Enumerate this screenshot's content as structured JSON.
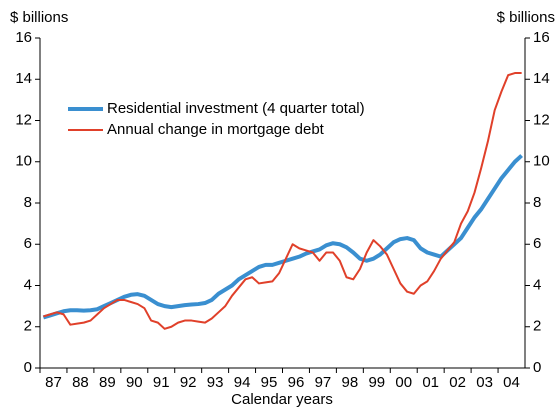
{
  "chart_data": {
    "type": "line",
    "y_label": "$ billions",
    "y2_label": "$ billions",
    "x_label": "Calendar years",
    "categories": [
      null,
      "87",
      null,
      null,
      null,
      "88",
      null,
      null,
      null,
      "89",
      null,
      null,
      null,
      "90",
      null,
      null,
      null,
      "91",
      null,
      null,
      null,
      "92",
      null,
      null,
      null,
      "93",
      null,
      null,
      null,
      "94",
      null,
      null,
      null,
      "95",
      null,
      null,
      null,
      "96",
      null,
      null,
      null,
      "97",
      null,
      null,
      null,
      "98",
      null,
      null,
      null,
      "99",
      null,
      null,
      null,
      "00",
      null,
      null,
      null,
      "01",
      null,
      null,
      null,
      "02",
      null,
      null,
      null,
      "03",
      null,
      null,
      null,
      "04",
      null,
      null
    ],
    "series": [
      {
        "name": "Residential investment (4 quarter total)",
        "color": "#3a8fd0",
        "values": [
          2.45,
          2.55,
          2.65,
          2.75,
          2.8,
          2.8,
          2.78,
          2.8,
          2.85,
          3.0,
          3.15,
          3.3,
          3.45,
          3.55,
          3.58,
          3.5,
          3.3,
          3.1,
          3.0,
          2.95,
          3.0,
          3.05,
          3.08,
          3.1,
          3.15,
          3.3,
          3.6,
          3.8,
          4.0,
          4.3,
          4.5,
          4.7,
          4.9,
          5.0,
          5.0,
          5.1,
          5.2,
          5.3,
          5.4,
          5.55,
          5.65,
          5.75,
          5.95,
          6.05,
          6.0,
          5.85,
          5.6,
          5.3,
          5.2,
          5.3,
          5.5,
          5.8,
          6.1,
          6.25,
          6.3,
          6.2,
          5.8,
          5.6,
          5.5,
          5.4,
          5.7,
          6.0,
          6.3,
          6.8,
          7.3,
          7.7,
          8.2,
          8.7,
          9.2,
          9.6,
          10.0,
          10.3
        ]
      },
      {
        "name": "Annual change in mortgage debt",
        "color": "#e0402a",
        "values": [
          2.5,
          2.6,
          2.7,
          2.6,
          2.1,
          2.15,
          2.2,
          2.3,
          2.6,
          2.9,
          3.1,
          3.3,
          3.3,
          3.2,
          3.1,
          2.9,
          2.3,
          2.2,
          1.9,
          2.0,
          2.2,
          2.3,
          2.3,
          2.25,
          2.2,
          2.4,
          2.7,
          3.0,
          3.5,
          3.9,
          4.3,
          4.4,
          4.1,
          4.15,
          4.2,
          4.6,
          5.3,
          6.0,
          5.8,
          5.7,
          5.6,
          5.2,
          5.6,
          5.6,
          5.2,
          4.4,
          4.3,
          4.8,
          5.6,
          6.2,
          5.9,
          5.5,
          4.8,
          4.1,
          3.7,
          3.6,
          4.0,
          4.2,
          4.7,
          5.3,
          5.7,
          6.1,
          7.0,
          7.6,
          8.5,
          9.7,
          11.0,
          12.5,
          13.4,
          14.2,
          14.3,
          14.3
        ]
      }
    ],
    "ylim": [
      0,
      16
    ],
    "yticks": [
      0,
      2,
      4,
      6,
      8,
      10,
      12,
      14,
      16
    ],
    "y2lim": [
      0,
      16
    ],
    "y2ticks": [
      0,
      2,
      4,
      6,
      8,
      10,
      12,
      14,
      16
    ],
    "grid": false
  }
}
